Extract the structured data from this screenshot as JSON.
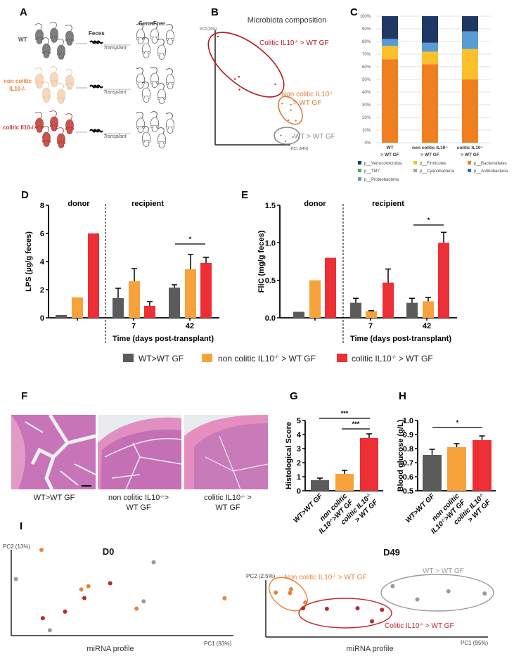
{
  "panel_letters": {
    "A": "A",
    "B": "B",
    "C": "C",
    "D": "D",
    "E": "E",
    "F": "F",
    "G": "G",
    "H": "H",
    "I": "I"
  },
  "panel_a": {
    "rows": [
      {
        "label_lines": [
          "WT"
        ],
        "color": "#7f7f7f",
        "label_color": "#555555"
      },
      {
        "label_lines": [
          "non colitic",
          "IL10-/-"
        ],
        "color": "#f6d9bd",
        "label_color": "#e8833a"
      },
      {
        "label_lines": [
          "colitic Il10-/-"
        ],
        "color": "#c9544f",
        "label_color": "#c0392b"
      }
    ],
    "feces": "Feces",
    "transplant": "Transplant",
    "germfree": "GermFree"
  },
  "shared_legend": {
    "items": [
      {
        "label": "WT>WT GF",
        "color": "#5b5b5b"
      },
      {
        "label": "non colitic IL10-/- > WT GF",
        "color": "#f7a23b"
      },
      {
        "label": "colitic IL10-/- > WT GF",
        "color": "#ec2f35"
      }
    ]
  },
  "panel_f": {
    "captions": [
      [
        "WT>WT GF"
      ],
      [
        "non colitic IL10-/->",
        "WT GF"
      ],
      [
        "colitic IL10-/- >",
        "WT GF"
      ]
    ]
  },
  "chart_data": [
    {
      "type": "scatter",
      "title": "Microbiota composition",
      "xlabel": "PC1 (54%)",
      "ylabel": "PC2 (20%)",
      "series": [
        {
          "label_lines": [
            "Colitic IL10-/- > WT GF"
          ],
          "color": "#b3171d",
          "points": [
            [
              3.7,
              94.5
            ],
            [
              26.4,
              57.4
            ],
            [
              31.7,
              59.4
            ],
            [
              32.3,
              48.2
            ],
            [
              79.8,
              52.9
            ]
          ]
        },
        {
          "label_lines": [
            "Non colitic IL10-/-",
            "> WT GF"
          ],
          "color": "#d97b3a",
          "points": [
            [
              89.1,
              36.1
            ],
            [
              100.6,
              35.0
            ],
            [
              100.6,
              30.3
            ],
            [
              97.5,
              21.5
            ],
            [
              107.1,
              21.1
            ]
          ]
        },
        {
          "label_lines": [
            "WT > WT GF"
          ],
          "color": "#8a8a8a",
          "points": [
            [
              87.3,
              8.2
            ],
            [
              103.4,
              6.8
            ],
            [
              93.5,
              3.1
            ]
          ]
        }
      ]
    },
    {
      "type": "bar",
      "stacked": true,
      "ytick_labels": [
        "0%",
        "10%",
        "20%",
        "30%",
        "40%",
        "50%",
        "60%",
        "70%",
        "80%",
        "90%",
        "100%"
      ],
      "ylim": [
        0,
        100
      ],
      "categories": [
        [
          "WT",
          "> WT GF"
        ],
        [
          "non colitic IL10-/-",
          "> WT GF"
        ],
        [
          "colitic IL10-/-",
          "> WT GF"
        ]
      ],
      "series": [
        {
          "name": "p__Bacteroidetes",
          "color": "#f07f21",
          "values": [
            66,
            62,
            50
          ]
        },
        {
          "name": "p__Firmicutes",
          "color": "#fbc12d",
          "values": [
            10.5,
            10,
            24
          ]
        },
        {
          "name": "p__Proteobacteria",
          "color": "#5b9bd5",
          "values": [
            5.5,
            7,
            14
          ]
        },
        {
          "name": "p__Verrucomicrobia",
          "color": "#1f3864",
          "values": [
            18,
            21,
            12
          ]
        },
        {
          "name": "p__TM7",
          "color": "#4caf50",
          "values": [
            0,
            0,
            0
          ]
        },
        {
          "name": "p__Cyanobacteria",
          "color": "#a5a5a5",
          "values": [
            0,
            0,
            0
          ]
        },
        {
          "name": "p__Actinobacteria",
          "color": "#2e75b6",
          "values": [
            0,
            0,
            0
          ]
        }
      ],
      "legend_order": [
        3,
        1,
        0,
        4,
        5,
        6,
        2
      ]
    },
    {
      "type": "bar",
      "ylabel": "LPS (µg/g feces)",
      "ylim": [
        0,
        8
      ],
      "ytick_labels": [
        "0",
        "2",
        "4",
        "6",
        "8"
      ],
      "section_labels": [
        "donor",
        "recipient"
      ],
      "xlabel": "Time (days post-transplant)",
      "categories": [
        "",
        "7",
        "42"
      ],
      "series": [
        {
          "name": "WT>WT GF",
          "color": "#5b5b5b",
          "values": [
            0.2,
            1.4,
            2.15
          ],
          "errors": [
            0,
            0.7,
            0.2
          ]
        },
        {
          "name": "non colitic IL10-/- > WT GF",
          "color": "#f7a23b",
          "values": [
            1.45,
            2.6,
            3.45
          ],
          "errors": [
            0,
            0.9,
            1.05
          ]
        },
        {
          "name": "colitic IL10-/- > WT GF",
          "color": "#ec2f35",
          "values": [
            6.0,
            0.85,
            3.9
          ],
          "errors": [
            0,
            0.3,
            0.4
          ]
        }
      ],
      "significance": [
        {
          "category": "42",
          "label": "*"
        }
      ]
    },
    {
      "type": "bar",
      "ylabel": "FliC (mg/g feces)",
      "ylim": [
        0,
        1.5
      ],
      "ytick_labels": [
        "0.0",
        "0.5",
        "1.0",
        "1.5"
      ],
      "section_labels": [
        "donor",
        "recipient"
      ],
      "xlabel": "Time (days post-transplant)",
      "categories": [
        "",
        "7",
        "42"
      ],
      "series": [
        {
          "name": "WT>WT GF",
          "color": "#5b5b5b",
          "values": [
            0.08,
            0.2,
            0.2
          ],
          "errors": [
            0,
            0.06,
            0.06
          ]
        },
        {
          "name": "non colitic IL10-/- > WT GF",
          "color": "#f7a23b",
          "values": [
            0.5,
            0.09,
            0.22
          ],
          "errors": [
            0,
            0.005,
            0.05
          ]
        },
        {
          "name": "colitic IL10-/- > WT GF",
          "color": "#ec2f35",
          "values": [
            0.8,
            0.47,
            1.0
          ],
          "errors": [
            0,
            0.18,
            0.14
          ]
        }
      ],
      "significance": [
        {
          "category": "42",
          "label": "*"
        }
      ]
    },
    {
      "type": "bar",
      "ylabel": "Histological Score",
      "ylim": [
        0,
        5
      ],
      "ytick_labels": [
        "0",
        "1",
        "2",
        "3",
        "4",
        "5"
      ],
      "categories": [
        [
          "WT>WT GF"
        ],
        [
          "non colitic",
          "IL10-/->WT GF"
        ],
        [
          "colitic IL10-/-",
          "> WT GF"
        ]
      ],
      "values": [
        0.75,
        1.2,
        3.75
      ],
      "errors": [
        0.15,
        0.25,
        0.3
      ],
      "colors": [
        "#5b5b5b",
        "#f7a23b",
        "#ec2f35"
      ],
      "significance": [
        {
          "pair": [
            0,
            2
          ],
          "label": "***"
        },
        {
          "pair": [
            1,
            2
          ],
          "label": "***"
        }
      ]
    },
    {
      "type": "bar",
      "ylabel": "Blood glucose (g/L)",
      "ylim": [
        0.5,
        1.0
      ],
      "ytick_labels": [
        "0.5",
        "0.6",
        "0.7",
        "0.8",
        "0.9",
        "1.0"
      ],
      "categories": [
        [
          "WT>WT GF"
        ],
        [
          "non colitic",
          "IL10-/->WT GF"
        ],
        [
          "colitic IL10-/-",
          "> WT GF"
        ]
      ],
      "values": [
        0.755,
        0.81,
        0.86
      ],
      "errors": [
        0.04,
        0.025,
        0.03
      ],
      "colors": [
        "#5b5b5b",
        "#f7a23b",
        "#ec2f35"
      ],
      "significance": [
        {
          "pair": [
            0,
            2
          ],
          "label": "*"
        }
      ]
    },
    {
      "type": "scatter",
      "title": "D0",
      "xlabel": "PC1 (83%)",
      "ylabel": "PC2 (13%)",
      "caption": "miRNA profile",
      "series": [
        {
          "color": "#e8833a",
          "points": [
            [
              13.6,
              100
            ],
            [
              31.5,
              53.8
            ],
            [
              34.7,
              57.6
            ],
            [
              56.4,
              31.5
            ],
            [
              96,
              43.5
            ]
          ]
        },
        {
          "color": "#9a9a9a",
          "points": [
            [
              2.1,
              66
            ],
            [
              64.1,
              85.6
            ],
            [
              59.6,
              40
            ],
            [
              17.4,
              6.2
            ]
          ]
        },
        {
          "color": "#c0272d",
          "points": [
            [
              44.5,
              61.1
            ],
            [
              32.9,
              43.8
            ],
            [
              24.2,
              28
            ],
            [
              14.2,
              20.4
            ]
          ]
        }
      ]
    },
    {
      "type": "scatter",
      "title": "D49",
      "xlabel": "PC1 (95%)",
      "ylabel": "PC2 (2.5%)",
      "caption": "miRNA profile",
      "series": [
        {
          "label_lines": [
            "Non colitic IL10-/- > WT GF"
          ],
          "color": "#e8833a",
          "points": [
            [
              4.5,
              78.1
            ],
            [
              10.9,
              77.3
            ],
            [
              11.4,
              83.9
            ],
            [
              17.8,
              60.7
            ]
          ]
        },
        {
          "label_lines": [
            "Colitic IL10-/- > WT GF"
          ],
          "color": "#c0272d",
          "points": [
            [
              16.8,
              50.4
            ],
            [
              27.5,
              49.6
            ],
            [
              41.3,
              50.4
            ],
            [
              52.3,
              47.9
            ],
            [
              47.8,
              27.7
            ]
          ]
        },
        {
          "label_lines": [
            "WT > WT GF"
          ],
          "color": "#9a9a9a",
          "points": [
            [
              57.1,
              89.3
            ],
            [
              68.2,
              66.1
            ],
            [
              82.2,
              80.2
            ],
            [
              98.5,
              76.4
            ]
          ]
        }
      ]
    }
  ]
}
